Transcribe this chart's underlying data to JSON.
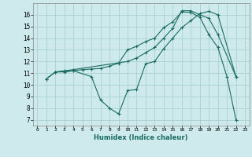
{
  "xlabel": "Humidex (Indice chaleur)",
  "bg_color": "#ceeaec",
  "grid_color": "#aed4d6",
  "line_color": "#1a6b62",
  "xlim": [
    -0.5,
    23.5
  ],
  "ylim": [
    6.5,
    17.0
  ],
  "xticks": [
    0,
    1,
    2,
    3,
    4,
    5,
    6,
    7,
    8,
    9,
    10,
    11,
    12,
    13,
    14,
    15,
    16,
    17,
    18,
    19,
    20,
    21,
    22,
    23
  ],
  "yticks": [
    7,
    8,
    9,
    10,
    11,
    12,
    13,
    14,
    15,
    16
  ],
  "line1_x": [
    1,
    2,
    3,
    4,
    5,
    6,
    7,
    8,
    9,
    10,
    11,
    12,
    13,
    14,
    15,
    16,
    17,
    18,
    19,
    20,
    21,
    22
  ],
  "line1_y": [
    10.5,
    11.1,
    11.1,
    11.2,
    11.3,
    11.35,
    11.4,
    11.6,
    11.85,
    13.0,
    13.3,
    13.7,
    14.0,
    14.9,
    15.4,
    16.25,
    16.2,
    15.8,
    14.3,
    13.2,
    10.7,
    7.0
  ],
  "line2_x": [
    1,
    2,
    3,
    4,
    6,
    7,
    8,
    9,
    10,
    11,
    12,
    13,
    14,
    15,
    16,
    17,
    18,
    19,
    20,
    22
  ],
  "line2_y": [
    10.5,
    11.1,
    11.15,
    11.2,
    10.7,
    8.7,
    8.0,
    7.5,
    9.5,
    9.6,
    11.8,
    12.0,
    13.1,
    14.0,
    14.9,
    15.5,
    16.1,
    16.3,
    16.0,
    10.7
  ],
  "line3_x": [
    2,
    3,
    4,
    10,
    11,
    12,
    13,
    14,
    15,
    16,
    17,
    18,
    19,
    20,
    22
  ],
  "line3_y": [
    11.1,
    11.2,
    11.3,
    12.0,
    12.3,
    12.75,
    13.2,
    14.0,
    14.85,
    16.35,
    16.35,
    16.0,
    15.7,
    14.3,
    10.7
  ]
}
